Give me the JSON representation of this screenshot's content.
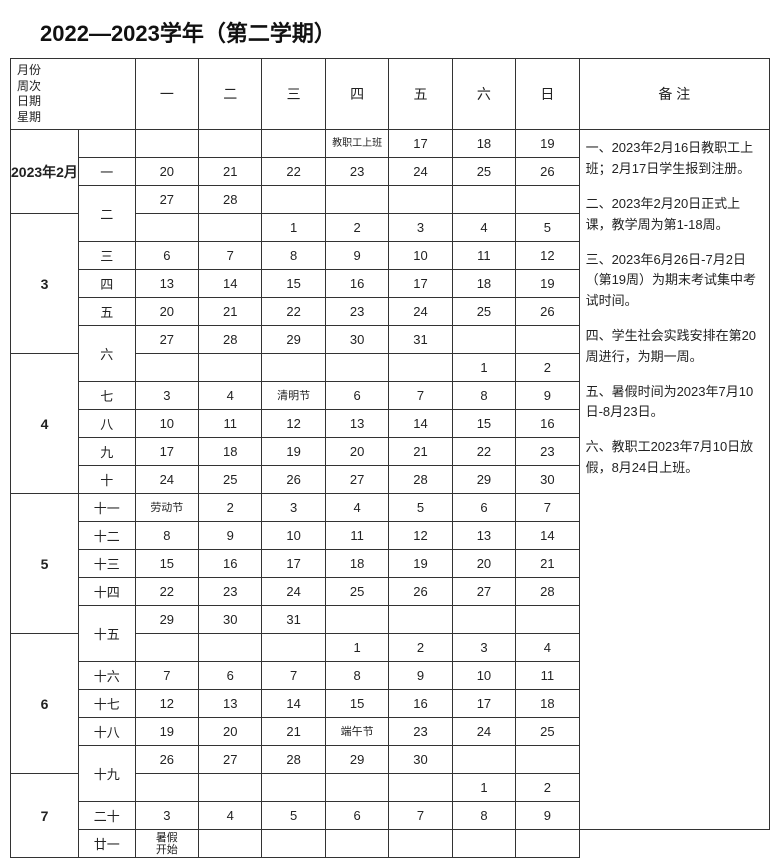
{
  "title": "2022—2023学年（第二学期）",
  "header": {
    "left": "月份\n周次\n日期\n星期",
    "days": [
      "一",
      "二",
      "三",
      "四",
      "五",
      "六",
      "日"
    ],
    "notes": "备 注"
  },
  "months": {
    "feb": "2023年2月",
    "mar": "3",
    "apr": "4",
    "may": "5",
    "jun": "6",
    "jul": "7"
  },
  "weeks": {
    "w1": "一",
    "w2": "二",
    "w3": "三",
    "w4": "四",
    "w5": "五",
    "w6": "六",
    "w7": "七",
    "w8": "八",
    "w9": "九",
    "w10": "十",
    "w11": "十一",
    "w12": "十二",
    "w13": "十三",
    "w14": "十四",
    "w15": "十五",
    "w16": "十六",
    "w17": "十七",
    "w18": "十八",
    "w19": "十九",
    "w20": "二十",
    "w21": "廿一"
  },
  "cells": {
    "staff": "教职工上班",
    "qingming": "清明节",
    "laodong": "劳动节",
    "duanwu": "端午节",
    "summer": "暑假\n开始"
  },
  "notes": {
    "n1": "一、2023年2月16日教职工上班；2月17日学生报到注册。",
    "n2": "二、2023年2月20日正式上课，教学周为第1-18周。",
    "n3": "三、2023年6月26日-7月2日（第19周）为期末考试集中考试时间。",
    "n4": "四、学生社会实践安排在第20周进行，为期一周。",
    "n5": "五、暑假时间为2023年7月10日-8月23日。",
    "n6": "六、教职工2023年7月10日放假，8月24日上班。"
  },
  "d": {
    "1": "1",
    "2": "2",
    "3": "3",
    "4": "4",
    "5": "5",
    "6": "6",
    "7": "7",
    "8": "8",
    "9": "9",
    "10": "10",
    "11": "11",
    "12": "12",
    "13": "13",
    "14": "14",
    "15": "15",
    "16": "16",
    "17": "17",
    "18": "18",
    "19": "19",
    "20": "20",
    "21": "21",
    "22": "22",
    "23": "23",
    "24": "24",
    "25": "25",
    "26": "26",
    "27": "27",
    "28": "28",
    "29": "29",
    "30": "30",
    "31": "31"
  }
}
